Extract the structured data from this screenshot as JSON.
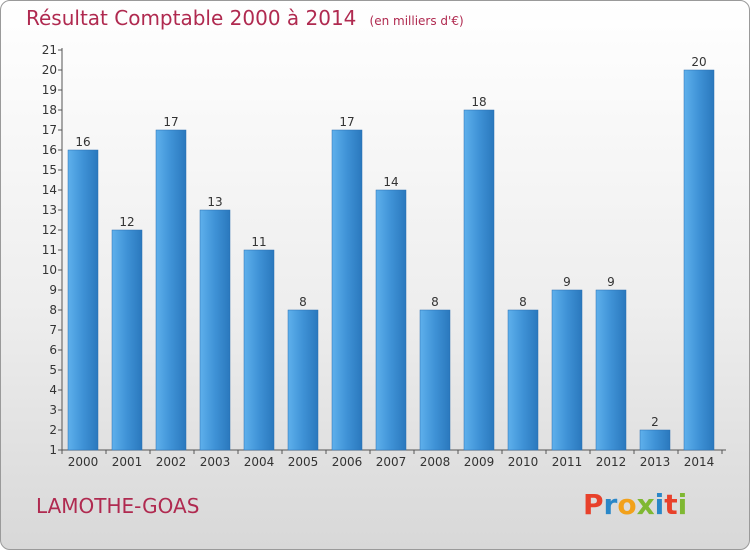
{
  "chart_data": {
    "type": "bar",
    "title": "Résultat Comptable 2000 à 2014",
    "subtitle": "(en milliers d'€)",
    "categories": [
      "2000",
      "2001",
      "2002",
      "2003",
      "2004",
      "2005",
      "2006",
      "2007",
      "2008",
      "2009",
      "2010",
      "2011",
      "2012",
      "2013",
      "2014"
    ],
    "values": [
      16,
      12,
      17,
      13,
      11,
      8,
      17,
      14,
      8,
      18,
      8,
      9,
      9,
      2,
      20
    ],
    "xlabel": "",
    "ylabel": "",
    "ylim": [
      1,
      21
    ],
    "yticks": [
      1,
      2,
      3,
      4,
      5,
      6,
      7,
      8,
      9,
      10,
      11,
      12,
      13,
      14,
      15,
      16,
      17,
      18,
      19,
      20,
      21
    ],
    "grid": false,
    "bar_color": "#3f8fd2"
  },
  "footer": {
    "town": "LAMOTHE-GOAS",
    "logo_letters": [
      "P",
      "r",
      "o",
      "x",
      "i",
      "t",
      "i"
    ],
    "logo_colors": [
      "#e8412b",
      "#2a87c8",
      "#f2a11b",
      "#7fb832",
      "#2a87c8",
      "#e8412b",
      "#7fb832"
    ]
  }
}
